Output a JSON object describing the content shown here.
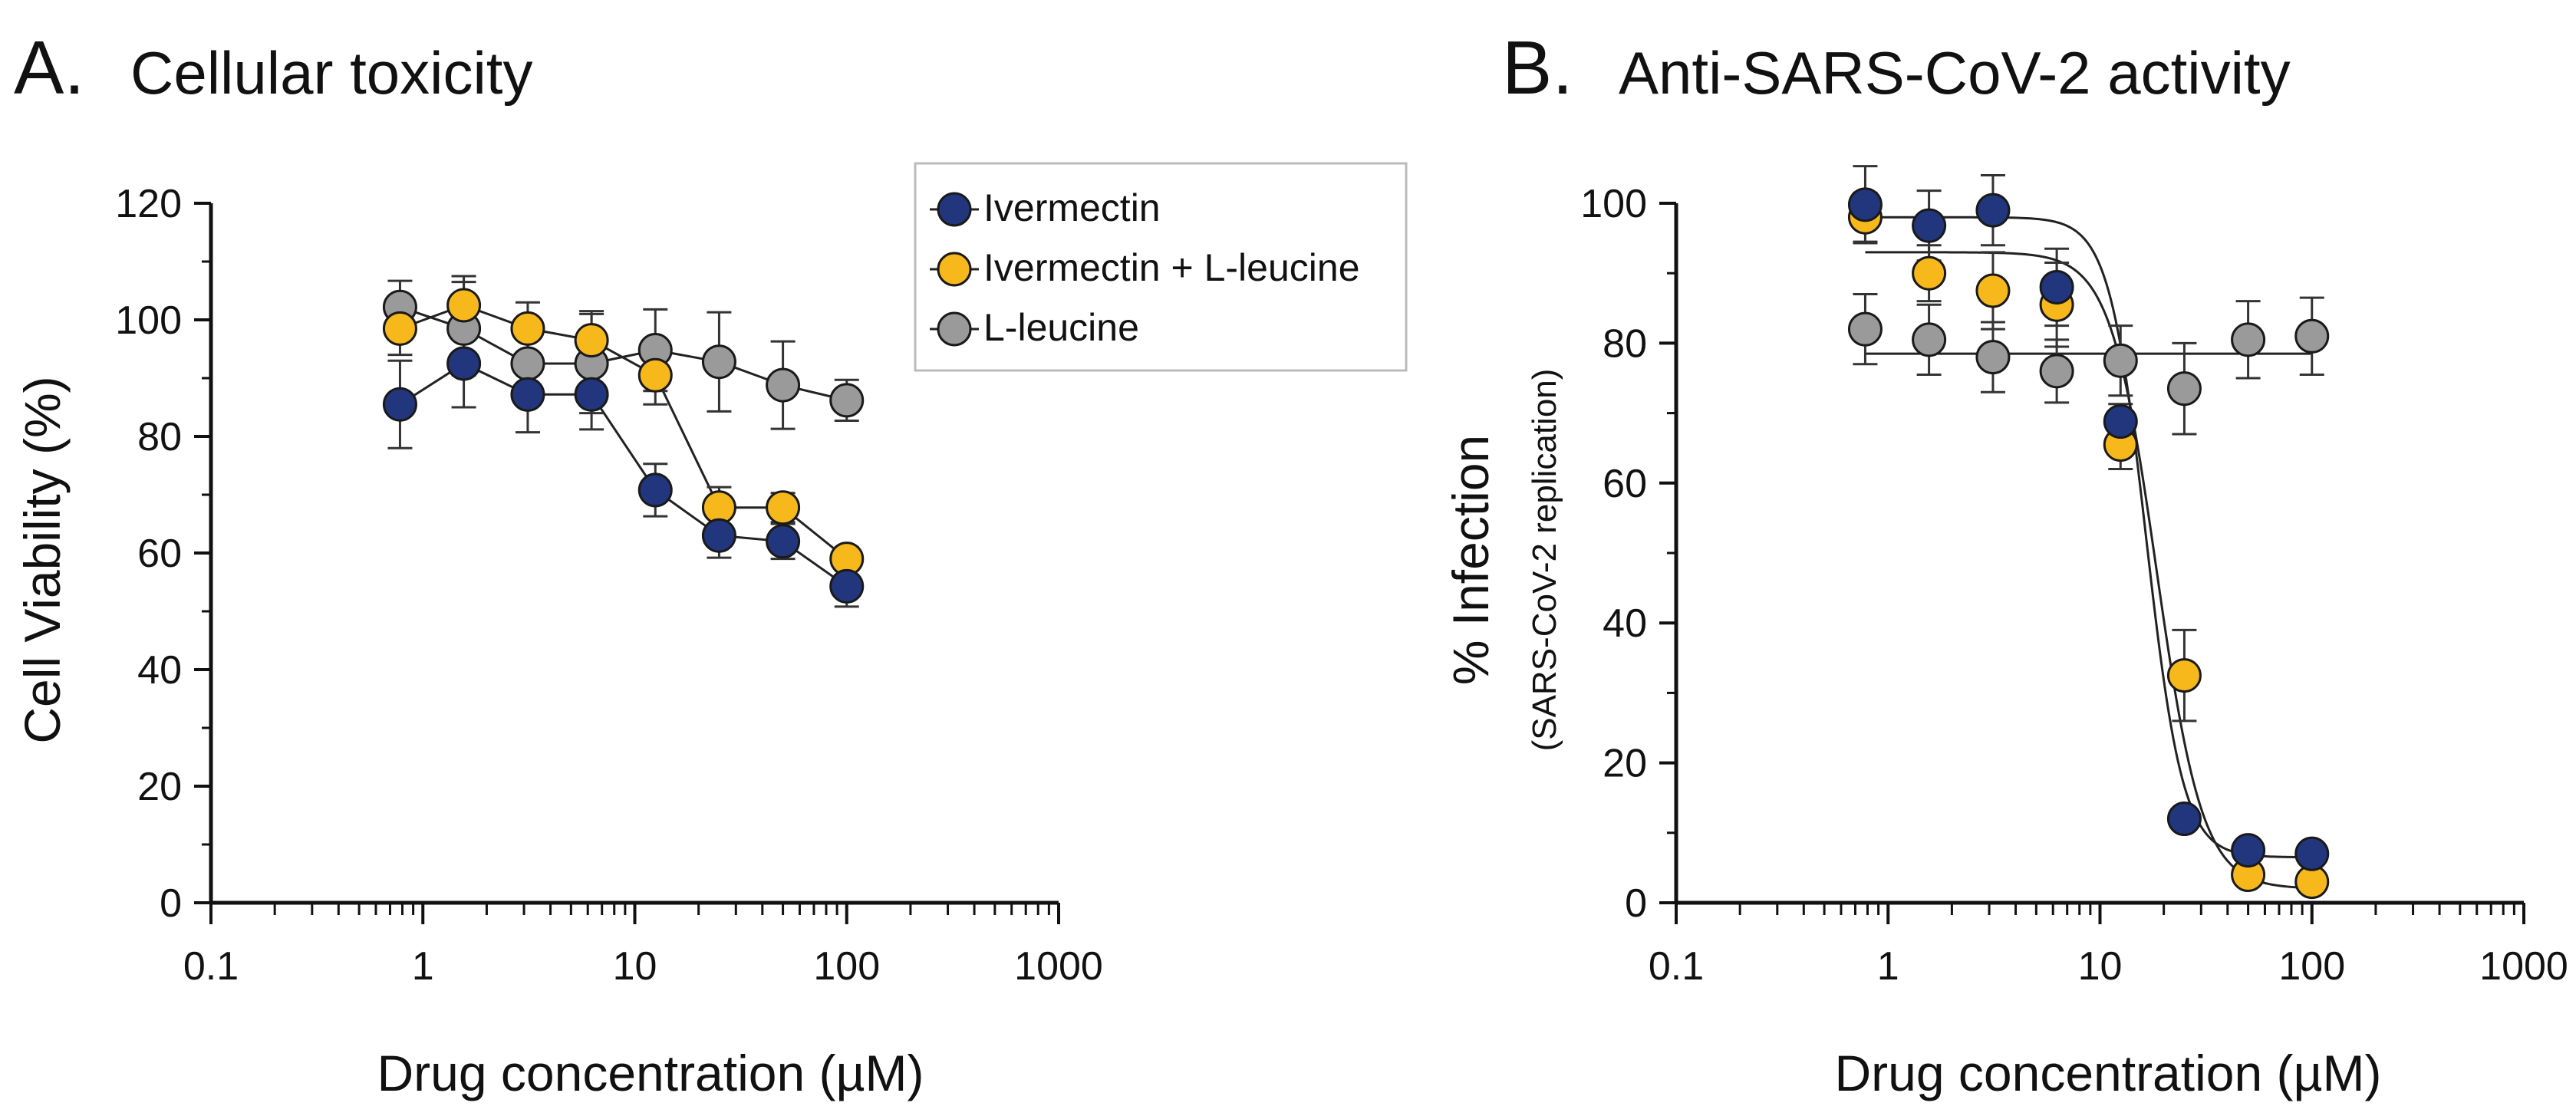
{
  "chart_data": [
    {
      "type": "scatter",
      "panel_label": "A.",
      "title": "Cellular toxicity",
      "xlabel": "Drug concentration (µM)",
      "ylabel": "Cell Viability (%)",
      "xscale": "log",
      "xlim": [
        0.1,
        1000
      ],
      "ylim": [
        0,
        120
      ],
      "xticks": [
        0.1,
        1,
        10,
        100,
        1000
      ],
      "xtick_labels": [
        "0.1",
        "1",
        "10",
        "100",
        "1000"
      ],
      "yticks": [
        0,
        20,
        40,
        60,
        80,
        100,
        120
      ],
      "ytick_labels": [
        "0",
        "20",
        "40",
        "60",
        "80",
        "100",
        "120"
      ],
      "grid": false,
      "legend": {
        "position": "top-right",
        "entries": [
          "Ivermectin",
          "Ivermectin + L-leucine",
          "L-leucine"
        ]
      },
      "series": [
        {
          "name": "Ivermectin",
          "color": "#22367d",
          "connect": "line",
          "x": [
            0.78,
            1.56,
            3.125,
            6.25,
            12.5,
            25,
            50,
            100
          ],
          "values": [
            85.5,
            92.5,
            87.2,
            87.2,
            70.8,
            63.0,
            62.0,
            54.3
          ],
          "errors": [
            7.5,
            7.5,
            6.5,
            6.0,
            4.5,
            3.8,
            3.0,
            3.5
          ]
        },
        {
          "name": "Ivermectin + L-leucine",
          "color": "#f7b81c",
          "connect": "line",
          "x": [
            0.78,
            1.56,
            3.125,
            6.25,
            12.5,
            25,
            50,
            100
          ],
          "values": [
            98.5,
            102.5,
            98.5,
            96.5,
            90.5,
            67.8,
            67.8,
            59.0
          ],
          "errors": [
            4.5,
            5.0,
            4.5,
            5.0,
            5.0,
            3.5,
            2.5,
            2.0
          ]
        },
        {
          "name": "L-leucine",
          "color": "#9a9a9a",
          "connect": "line",
          "x": [
            0.78,
            1.56,
            3.125,
            6.25,
            12.5,
            25,
            50,
            100
          ],
          "values": [
            102.2,
            98.5,
            92.5,
            92.5,
            94.8,
            92.8,
            88.8,
            86.2
          ],
          "errors": [
            4.5,
            8.0,
            6.5,
            8.5,
            7.0,
            8.5,
            7.5,
            3.5
          ]
        }
      ]
    },
    {
      "type": "scatter",
      "panel_label": "B.",
      "title": "Anti-SARS-CoV-2 activity",
      "xlabel": "Drug concentration (µM)",
      "ylabel": "% Infection",
      "ylabel_sub": "(SARS-CoV-2 replication)",
      "xscale": "log",
      "xlim": [
        0.1,
        1000
      ],
      "ylim": [
        0,
        100
      ],
      "xticks": [
        0.1,
        1,
        10,
        100,
        1000
      ],
      "xtick_labels": [
        "0.1",
        "1",
        "10",
        "100",
        "1000"
      ],
      "yticks": [
        0,
        20,
        40,
        60,
        80,
        100
      ],
      "ytick_labels": [
        "0",
        "20",
        "40",
        "60",
        "80",
        "100"
      ],
      "grid": false,
      "series": [
        {
          "name": "Ivermectin",
          "color": "#22367d",
          "connect": "sigmoid",
          "fit": {
            "top": 98,
            "bottom": 6.5,
            "ec50": 16.5,
            "hill": 5
          },
          "x": [
            0.78,
            1.56,
            3.125,
            6.25,
            12.5,
            25,
            50,
            100
          ],
          "values": [
            99.8,
            96.8,
            99.0,
            88.0,
            68.8,
            12.0,
            7.5,
            7.0
          ],
          "errors": [
            5.5,
            5.0,
            5.0,
            5.5,
            2.5,
            1.0,
            1.0,
            1.0
          ]
        },
        {
          "name": "Ivermectin + L-leucine",
          "color": "#f7b81c",
          "connect": "sigmoid",
          "fit": {
            "top": 93,
            "bottom": 2,
            "ec50": 18.5,
            "hill": 4
          },
          "x": [
            0.78,
            1.56,
            3.125,
            6.25,
            12.5,
            25,
            50,
            100
          ],
          "values": [
            98.0,
            90.0,
            87.5,
            85.5,
            65.5,
            32.5,
            4.0,
            3.0
          ],
          "errors": [
            3.5,
            4.0,
            5.5,
            6.0,
            3.5,
            6.5,
            1.0,
            1.0
          ]
        },
        {
          "name": "L-leucine",
          "color": "#9a9a9a",
          "connect": "flat",
          "fit_level": 78.5,
          "x": [
            0.78,
            1.56,
            3.125,
            6.25,
            12.5,
            25,
            50,
            100
          ],
          "values": [
            82.0,
            80.5,
            78.0,
            76.0,
            77.5,
            73.5,
            80.5,
            81.0
          ],
          "errors": [
            5.0,
            5.0,
            5.0,
            4.5,
            5.0,
            6.5,
            5.5,
            5.5
          ]
        }
      ]
    }
  ]
}
